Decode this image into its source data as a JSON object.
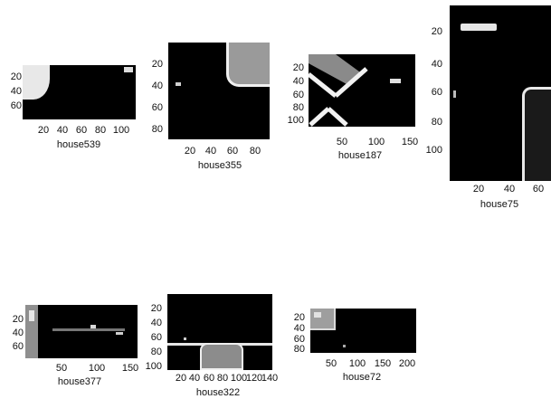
{
  "chart_data": [
    {
      "type": "heatmap",
      "title": "house539",
      "xticks": [
        "20",
        "40",
        "60",
        "80",
        "100"
      ],
      "yticks": [
        "20",
        "40",
        "60"
      ]
    },
    {
      "type": "heatmap",
      "title": "house355",
      "xticks": [
        "20",
        "40",
        "60",
        "80"
      ],
      "yticks": [
        "20",
        "40",
        "60",
        "80"
      ]
    },
    {
      "type": "heatmap",
      "title": "house187",
      "xticks": [
        "50",
        "100",
        "150"
      ],
      "yticks": [
        "20",
        "40",
        "60",
        "80",
        "100"
      ]
    },
    {
      "type": "heatmap",
      "title": "house75",
      "xticks": [
        "20",
        "40",
        "60"
      ],
      "yticks": [
        "20",
        "40",
        "60",
        "80",
        "100"
      ]
    },
    {
      "type": "heatmap",
      "title": "house377",
      "xticks": [
        "50",
        "100",
        "150"
      ],
      "yticks": [
        "20",
        "40",
        "60"
      ]
    },
    {
      "type": "heatmap",
      "title": "house322",
      "xticks": [
        "20",
        "40",
        "60",
        "80",
        "100",
        "120",
        "140"
      ],
      "yticks": [
        "20",
        "40",
        "60",
        "80",
        "100"
      ]
    },
    {
      "type": "heatmap",
      "title": "house72",
      "xticks": [
        "50",
        "100",
        "150",
        "200"
      ],
      "yticks": [
        "20",
        "40",
        "60",
        "80"
      ]
    }
  ]
}
